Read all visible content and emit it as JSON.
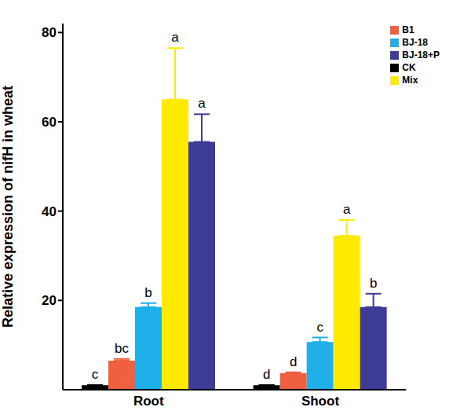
{
  "chart_data": {
    "type": "bar",
    "y_label": "Relative expression of nifH in wheat",
    "categories": [
      "Root",
      "Shoot"
    ],
    "ylim": [
      0,
      82
    ],
    "yticks": [
      20,
      40,
      60,
      80
    ],
    "legend": "top-right",
    "series": [
      {
        "name": "CK",
        "color": "#000000",
        "values": [
          1,
          1
        ],
        "error": [
          0,
          0
        ],
        "annotations": [
          "c",
          "d"
        ]
      },
      {
        "name": "B1",
        "color": "#f0603e",
        "values": [
          6.5,
          3.7
        ],
        "error": [
          0.4,
          0.2
        ],
        "annotations": [
          "bc",
          "d"
        ]
      },
      {
        "name": "BJ-18",
        "color": "#1fb0ea",
        "values": [
          18.5,
          10.7
        ],
        "error": [
          0.9,
          1.0
        ],
        "annotations": [
          "b",
          "c"
        ]
      },
      {
        "name": "Mix",
        "color": "#ffea00",
        "values": [
          65,
          34.5
        ],
        "error": [
          11.5,
          3.5
        ],
        "annotations": [
          "a",
          "a"
        ]
      },
      {
        "name": "BJ-18+P",
        "color": "#3d3b96",
        "values": [
          55.5,
          18.5
        ],
        "error": [
          6.2,
          3.0
        ],
        "annotations": [
          "a",
          "b"
        ]
      }
    ]
  }
}
